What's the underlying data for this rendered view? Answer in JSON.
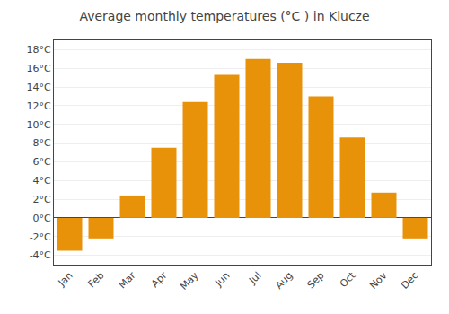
{
  "chart_data": {
    "type": "bar",
    "title": "Average monthly temperatures (°C ) in Klucze",
    "categories": [
      "Jan",
      "Feb",
      "Mar",
      "Apr",
      "May",
      "Jun",
      "Jul",
      "Aug",
      "Sep",
      "Oct",
      "Nov",
      "Dec"
    ],
    "values": [
      -3.5,
      -2.2,
      2.4,
      7.5,
      12.4,
      15.3,
      17.0,
      16.6,
      13.0,
      8.6,
      2.7,
      -2.2
    ],
    "color": "#E8920A",
    "ylim": [
      -5,
      19
    ],
    "yticks": [
      {
        "value": -4,
        "label": "-4°C"
      },
      {
        "value": -2,
        "label": "-2°C"
      },
      {
        "value": 0,
        "label": "0°C"
      },
      {
        "value": 2,
        "label": "2°C"
      },
      {
        "value": 4,
        "label": "4°C"
      },
      {
        "value": 6,
        "label": "6°C"
      },
      {
        "value": 8,
        "label": "8°C"
      },
      {
        "value": 10,
        "label": "10°C"
      },
      {
        "value": 12,
        "label": "12°C"
      },
      {
        "value": 14,
        "label": "14°C"
      },
      {
        "value": 16,
        "label": "16°C"
      },
      {
        "value": 18,
        "label": "18°C"
      }
    ],
    "grid": true
  }
}
